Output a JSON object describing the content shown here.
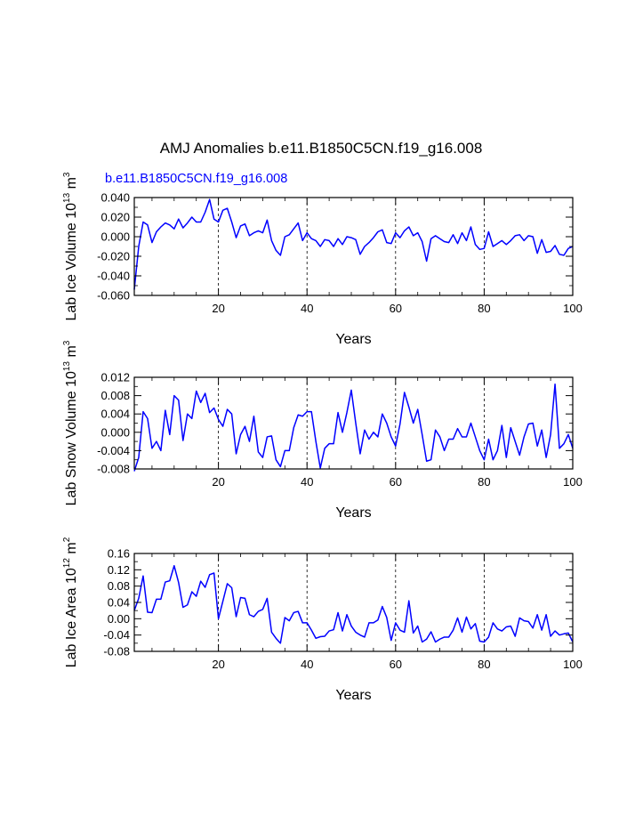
{
  "title": "AMJ Anomalies b.e11.B1850C5CN.f19_g16.008",
  "colors": {
    "series": "#0000ff",
    "axis": "#000000",
    "grid": "#000000"
  },
  "chart_data": [
    {
      "type": "line",
      "series_name": "b.e11.B1850C5CN.f19_g16.008",
      "xlabel": "Years",
      "ylabel": {
        "prefix": "Lab Ice Volume 10",
        "exp": "13",
        "unit": " m",
        "unit_exp": "3"
      },
      "xlim": [
        1,
        100
      ],
      "ylim": [
        -0.06,
        0.04
      ],
      "xticks": [
        20,
        40,
        60,
        80,
        100
      ],
      "yticks": [
        -0.06,
        -0.04,
        -0.02,
        0.0,
        0.02,
        0.04
      ],
      "ytick_labels": [
        "-0.060",
        "-0.040",
        "-0.020",
        "0.000",
        "0.020",
        "0.040"
      ],
      "grid_x": [
        20,
        40,
        60,
        80
      ],
      "values": [
        -0.054,
        -0.01,
        0.015,
        0.012,
        -0.006,
        0.005,
        0.01,
        0.014,
        0.012,
        0.008,
        0.018,
        0.009,
        0.014,
        0.02,
        0.015,
        0.015,
        0.025,
        0.038,
        0.018,
        0.015,
        0.027,
        0.029,
        0.015,
        -0.001,
        0.011,
        0.013,
        0.001,
        0.004,
        0.006,
        0.004,
        0.017,
        -0.004,
        -0.014,
        -0.019,
        0.0,
        0.002,
        0.008,
        0.014,
        -0.004,
        0.004,
        -0.002,
        -0.004,
        -0.01,
        -0.003,
        -0.004,
        -0.01,
        -0.002,
        -0.008,
        0.0,
        -0.001,
        -0.003,
        -0.018,
        -0.01,
        -0.006,
        -0.001,
        0.005,
        0.007,
        -0.006,
        -0.007,
        0.004,
        -0.001,
        0.006,
        0.01,
        0.001,
        0.004,
        -0.005,
        -0.025,
        -0.002,
        0.001,
        -0.002,
        -0.005,
        -0.006,
        0.002,
        -0.007,
        0.004,
        -0.004,
        0.01,
        -0.008,
        -0.013,
        -0.012,
        0.005,
        -0.01,
        -0.007,
        -0.004,
        -0.008,
        -0.004,
        0.001,
        0.002,
        -0.004,
        0.001,
        0.0,
        -0.017,
        -0.003,
        -0.016,
        -0.015,
        -0.009,
        -0.018,
        -0.019,
        -0.012,
        -0.01
      ]
    },
    {
      "type": "line",
      "series_name": "",
      "xlabel": "Years",
      "ylabel": {
        "prefix": "Lab Snow Volume 10",
        "exp": "13",
        "unit": " m",
        "unit_exp": "3"
      },
      "xlim": [
        1,
        100
      ],
      "ylim": [
        -0.008,
        0.012
      ],
      "xticks": [
        20,
        40,
        60,
        80,
        100
      ],
      "yticks": [
        -0.008,
        -0.004,
        0.0,
        0.004,
        0.008,
        0.012
      ],
      "ytick_labels": [
        "-0.008",
        "-0.004",
        "0.000",
        "0.004",
        "0.008",
        "0.012"
      ],
      "grid_x": [
        20,
        40,
        60,
        80
      ],
      "values": [
        -0.0085,
        -0.0055,
        0.0045,
        0.003,
        -0.0035,
        -0.002,
        -0.004,
        0.0048,
        -0.0005,
        0.008,
        0.007,
        -0.0018,
        0.004,
        0.003,
        0.009,
        0.0065,
        0.0085,
        0.0043,
        0.0053,
        0.0028,
        0.0013,
        0.005,
        0.004,
        -0.0047,
        -0.0005,
        0.0013,
        -0.002,
        0.0035,
        -0.0043,
        -0.0055,
        -0.001,
        -0.0008,
        -0.006,
        -0.0075,
        -0.004,
        -0.004,
        0.001,
        0.0038,
        0.0035,
        0.0045,
        0.0045,
        -0.002,
        -0.0078,
        -0.0035,
        -0.0025,
        -0.0025,
        0.0043,
        0.0,
        0.0043,
        0.0092,
        0.002,
        -0.0047,
        0.0005,
        -0.0015,
        0.0,
        -0.001,
        0.004,
        0.002,
        -0.001,
        -0.003,
        0.0018,
        0.0087,
        0.0055,
        0.002,
        0.005,
        -0.0005,
        -0.0063,
        -0.006,
        0.0005,
        -0.001,
        -0.004,
        -0.0015,
        -0.0015,
        0.0008,
        -0.001,
        -0.001,
        0.002,
        -0.001,
        -0.004,
        -0.006,
        -0.0015,
        -0.006,
        -0.004,
        0.0015,
        -0.0055,
        0.001,
        -0.002,
        -0.005,
        -0.001,
        0.0018,
        0.002,
        -0.003,
        0.0005,
        -0.0055,
        -0.0005,
        0.0105,
        -0.0035,
        -0.0025,
        -0.0005,
        -0.0035
      ]
    },
    {
      "type": "line",
      "series_name": "",
      "xlabel": "Years",
      "ylabel": {
        "prefix": "Lab Ice Area 10",
        "exp": "12",
        "unit": " m",
        "unit_exp": "2"
      },
      "xlim": [
        1,
        100
      ],
      "ylim": [
        -0.08,
        0.16
      ],
      "xticks": [
        20,
        40,
        60,
        80,
        100
      ],
      "yticks": [
        -0.08,
        -0.04,
        0.0,
        0.04,
        0.08,
        0.12,
        0.16
      ],
      "ytick_labels": [
        "-0.08",
        "-0.04",
        "0.00",
        "0.04",
        "0.08",
        "0.12",
        "0.16"
      ],
      "grid_x": [
        20,
        40,
        60,
        80
      ],
      "values": [
        0.02,
        0.05,
        0.105,
        0.016,
        0.015,
        0.048,
        0.048,
        0.09,
        0.093,
        0.13,
        0.089,
        0.028,
        0.034,
        0.066,
        0.055,
        0.092,
        0.077,
        0.108,
        0.112,
        0.0,
        0.043,
        0.086,
        0.076,
        0.005,
        0.052,
        0.05,
        0.01,
        0.005,
        0.018,
        0.023,
        0.05,
        -0.033,
        -0.048,
        -0.06,
        0.003,
        -0.005,
        0.015,
        0.018,
        -0.01,
        -0.01,
        -0.028,
        -0.048,
        -0.044,
        -0.043,
        -0.03,
        -0.027,
        0.015,
        -0.03,
        0.01,
        -0.018,
        -0.033,
        -0.04,
        -0.045,
        -0.01,
        -0.01,
        -0.003,
        0.03,
        0.003,
        -0.053,
        -0.01,
        -0.028,
        -0.033,
        0.044,
        -0.035,
        -0.018,
        -0.057,
        -0.05,
        -0.032,
        -0.057,
        -0.05,
        -0.045,
        -0.045,
        -0.028,
        0.002,
        -0.033,
        0.004,
        -0.025,
        -0.012,
        -0.055,
        -0.057,
        -0.045,
        -0.01,
        -0.025,
        -0.03,
        -0.02,
        -0.018,
        -0.043,
        0.002,
        -0.005,
        -0.007,
        -0.023,
        0.01,
        -0.028,
        0.01,
        -0.043,
        -0.03,
        -0.04,
        -0.037,
        -0.035,
        -0.057
      ]
    }
  ]
}
